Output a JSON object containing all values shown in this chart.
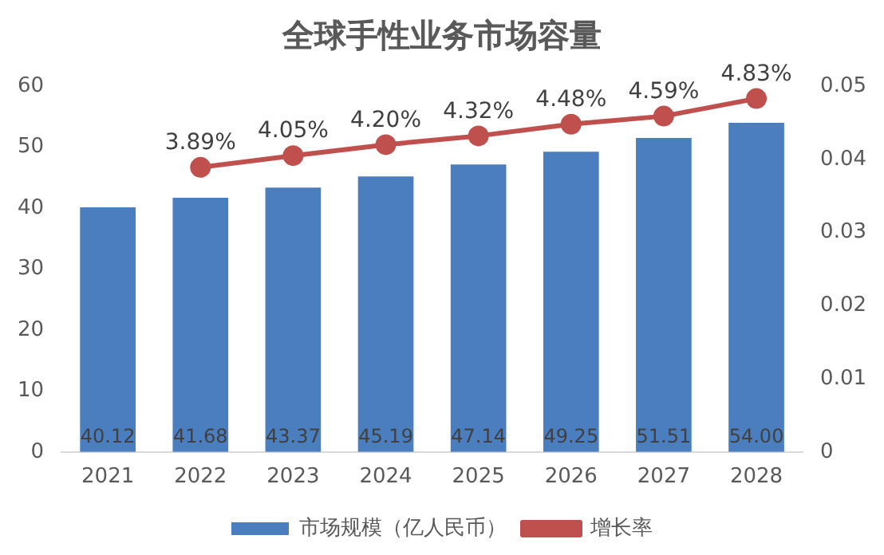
{
  "chart_data": {
    "type": "bar",
    "title": "全球手性业务市场容量",
    "categories": [
      "2021",
      "2022",
      "2023",
      "2024",
      "2025",
      "2026",
      "2027",
      "2028"
    ],
    "series": [
      {
        "name": "市场规模（亿人民币）",
        "color": "#4a7ebf",
        "values": [
          40.12,
          41.68,
          43.37,
          45.19,
          47.14,
          49.25,
          51.51,
          54.0
        ],
        "value_labels": [
          "40.12",
          "41.68",
          "43.37",
          "45.19",
          "47.14",
          "49.25",
          "51.51",
          "54.00"
        ]
      },
      {
        "name": "增长率",
        "type": "line",
        "axis": "y2",
        "color": "#c0504d",
        "values": [
          null,
          0.0389,
          0.0405,
          0.042,
          0.0432,
          0.0448,
          0.0459,
          0.0483
        ],
        "value_labels": [
          null,
          "3.89%",
          "4.05%",
          "4.20%",
          "4.32%",
          "4.48%",
          "4.59%",
          "4.83%"
        ]
      }
    ],
    "ylim": [
      0,
      60
    ],
    "yticks": [
      0,
      10,
      20,
      30,
      40,
      50,
      60
    ],
    "y2lim": [
      0,
      0.05
    ],
    "y2ticks": [
      0,
      0.01,
      0.02,
      0.03,
      0.04,
      0.05
    ],
    "grid": false,
    "legend": "bottom",
    "marker": "circle",
    "line_style": "solid"
  }
}
